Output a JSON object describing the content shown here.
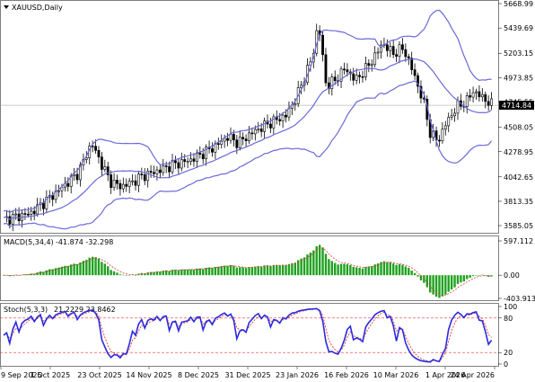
{
  "symbol": "XAUUSD,Daily",
  "chart_data": [
    {
      "type": "candlestick",
      "title": "XAUUSD,Daily",
      "y_ticks": [
        "5668.99",
        "5439.69",
        "5203.15",
        "4973.85",
        "4745.55",
        "4508.05",
        "4278.95",
        "4042.65",
        "3813.35",
        "3585.05"
      ],
      "y_values": [
        5668.99,
        5439.69,
        5203.15,
        4973.85,
        4745.55,
        4508.05,
        4278.95,
        4042.65,
        3813.35,
        3585.05
      ],
      "current_price": "4714.84",
      "current_value": 4714.84,
      "x_ticks": [
        "9 Sep 2025",
        "1 Oct 2025",
        "23 Oct 2025",
        "14 Nov 2025",
        "8 Dec 2025",
        "31 Dec 2025",
        "23 Jan 2026",
        "16 Feb 2026",
        "10 Mar 2026",
        "1 Apr 2026",
        "24 Apr 2026"
      ],
      "series": [
        {
          "name": "Bollinger Bands",
          "color": "#6a6ad8"
        }
      ],
      "colors": {
        "up": "#000000",
        "down": "#000000",
        "up_fill": "#ffffff",
        "down_fill": "#000000"
      }
    },
    {
      "type": "bar",
      "label": "MACD(5,34,4)",
      "values_text": "-41.874 -32.298",
      "y_ticks": [
        "597.112",
        "0.00",
        "-403.913"
      ],
      "y_values": [
        597.112,
        0,
        -403.913
      ],
      "colors": {
        "bars": "#1fa11f",
        "signal": "#e23a3a"
      }
    },
    {
      "type": "line",
      "label": "Stoch(5,3,3)",
      "values_text": "21.2229 23.8462",
      "y_ticks": [
        "100",
        "80",
        "20",
        "0"
      ],
      "y_values": [
        100,
        80,
        20,
        0
      ],
      "levels": [
        80,
        20
      ],
      "colors": {
        "main": "#2a2adf",
        "signal": "#e23a3a",
        "levels": "#e23a3a"
      }
    }
  ]
}
